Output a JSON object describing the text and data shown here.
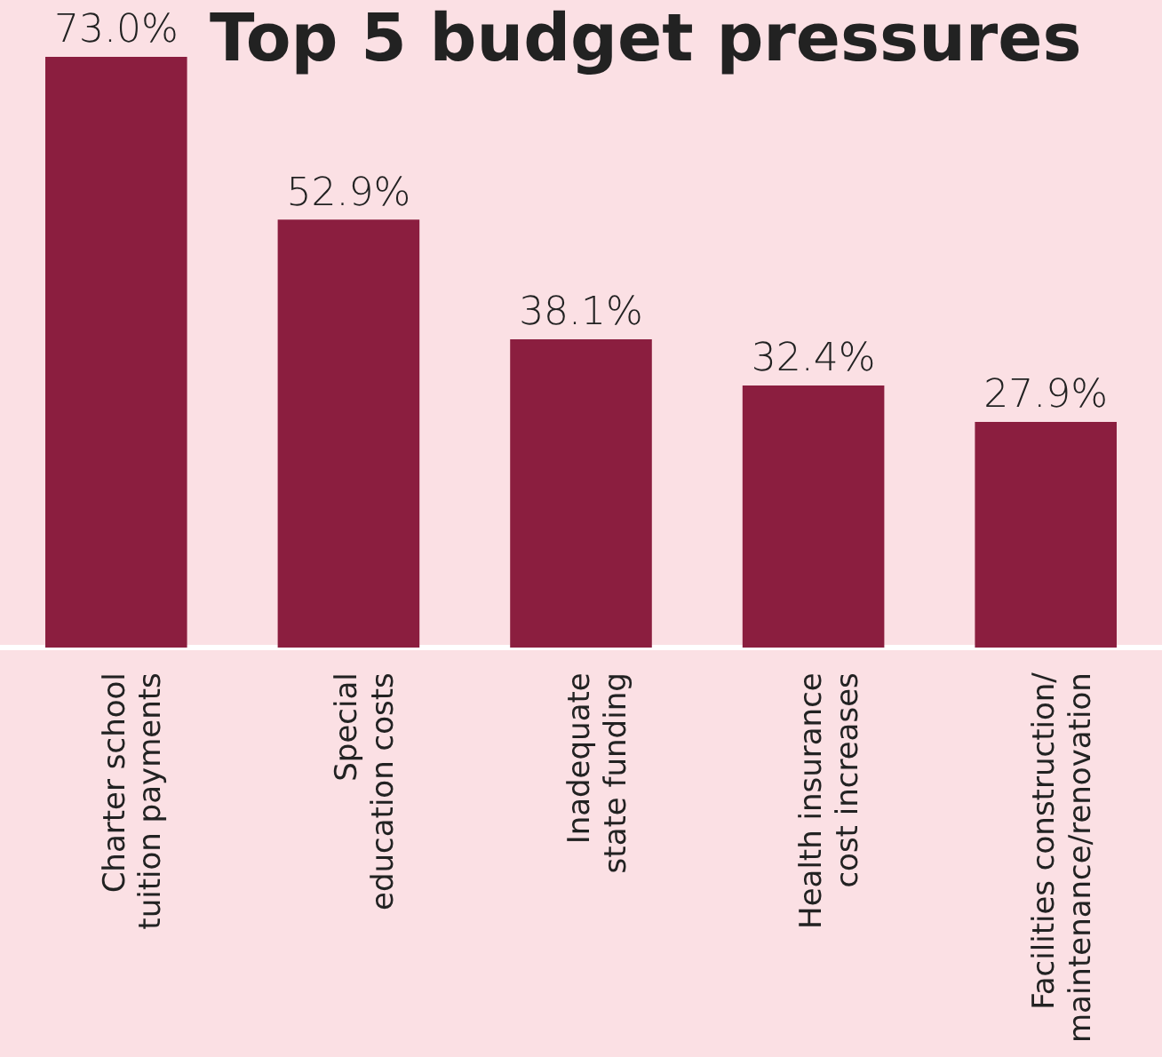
{
  "chart_data": {
    "type": "bar",
    "title": "Top 5 budget pressures",
    "categories": [
      "Charter school tuition payments",
      "Special education costs",
      "Inadequate state funding",
      "Health insurance cost increases",
      "Facilities construction/ maintenance/renovation"
    ],
    "values": [
      73.0,
      52.9,
      38.1,
      32.4,
      27.9
    ],
    "value_labels": [
      "73.0%",
      "52.9%",
      "38.1%",
      "32.4%",
      "27.9%"
    ],
    "color": "#8b1e3f",
    "grid": false,
    "legend": false
  }
}
